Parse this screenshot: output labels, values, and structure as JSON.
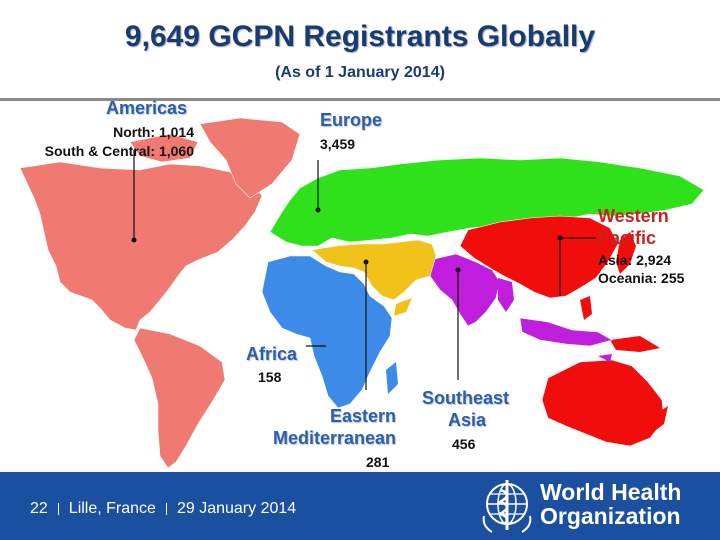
{
  "title": "9,649 GCPN Registrants Globally",
  "subtitle": "(As of 1 January 2014)",
  "regions": {
    "americas": {
      "name": "Americas",
      "line1": "North: 1,014",
      "line2": "South & Central: 1,060",
      "color": "#f07a72"
    },
    "europe": {
      "name": "Europe",
      "value": "3,459",
      "color": "#2ee11a"
    },
    "western_pacific": {
      "name_line1": "Western",
      "name_line2": "Pacific",
      "line1": "Asia: 2,924",
      "line2": "Oceania: 255",
      "color": "#f20d0d"
    },
    "africa": {
      "name": "Africa",
      "value": "158",
      "color": "#3d8be8"
    },
    "eastern_mediterranean": {
      "name_line1": "Eastern",
      "name_line2": "Mediterranean",
      "value": "281",
      "color": "#f0c21a"
    },
    "southeast_asia": {
      "name_line1": "Southeast",
      "name_line2": "Asia",
      "value": "456",
      "color": "#bf1fdc"
    }
  },
  "footer": {
    "page": "22",
    "place": "Lille, France",
    "date": "29 January 2014",
    "org_line1": "World Health",
    "org_line2": "Organization"
  }
}
